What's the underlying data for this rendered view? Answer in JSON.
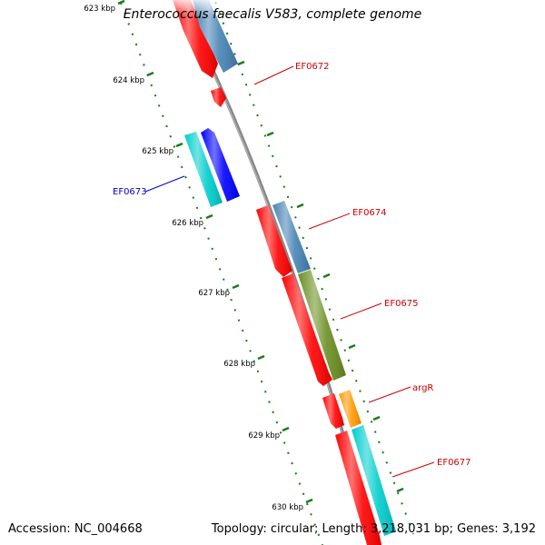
{
  "title": "Enterococcus faecalis V583, complete genome",
  "footer": {
    "accession": "Accession: NC_004668",
    "summary": "Topology: circular; Length: 3,218,031 bp; Genes: 3,192"
  },
  "colors": {
    "backbone": "#808080",
    "tick": "#1a7a1a",
    "red": "#ff0000",
    "steelblue": "#4682b4",
    "blue": "#0000ff",
    "cyan": "#00cdcd",
    "olive": "#6b8e23",
    "orange": "#ff9900"
  },
  "ticks": [
    {
      "label": "623 kbp"
    },
    {
      "label": "624 kbp"
    },
    {
      "label": "625 kbp"
    },
    {
      "label": "626 kbp"
    },
    {
      "label": "627 kbp"
    },
    {
      "label": "628 kbp"
    },
    {
      "label": "629 kbp"
    },
    {
      "label": "630 kbp"
    }
  ],
  "gene_labels": [
    {
      "name": "EF0672",
      "color": "#cc0000"
    },
    {
      "name": "EF0673",
      "color": "#0000cc"
    },
    {
      "name": "EF0674",
      "color": "#cc0000"
    },
    {
      "name": "EF0675",
      "color": "#cc0000"
    },
    {
      "name": "argR",
      "color": "#cc0000"
    },
    {
      "name": "EF0677",
      "color": "#cc0000"
    }
  ]
}
